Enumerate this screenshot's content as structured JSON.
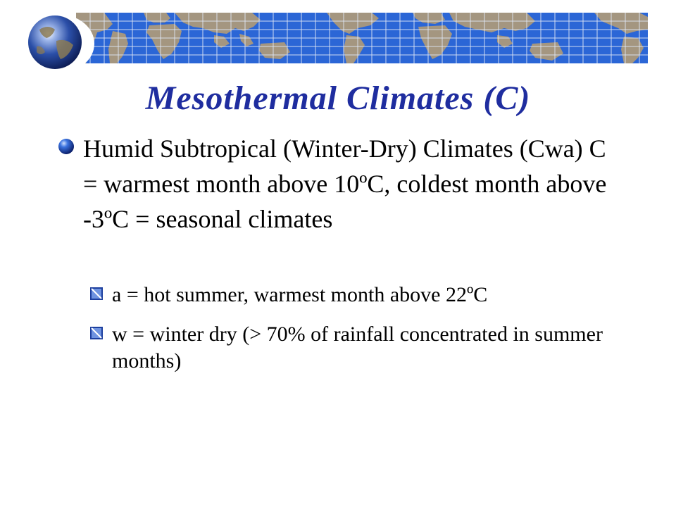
{
  "slide": {
    "title": "Mesothermal Climates (C)",
    "main_bullet": "Humid Subtropical (Winter-Dry) Climates (Cwa) C = warmest month above 10ºC, coldest month above -3ºC = seasonal climates",
    "sub_bullets": [
      "a = hot summer, warmest month above 22ºC",
      "w = winter dry (> 70% of rainfall concentrated in summer months)"
    ]
  },
  "colors": {
    "title": "#1f2d9f",
    "ocean": "#2b66d6",
    "land": "#a49680",
    "grid": "#dfe6f5",
    "bullet_orb": "#1d4fb8"
  },
  "icons": {
    "header_logo": "globe-icon",
    "header_banner": "world-map",
    "main_bullet": "blue-orb-bullet",
    "sub_bullet": "blue-square-bullet"
  }
}
